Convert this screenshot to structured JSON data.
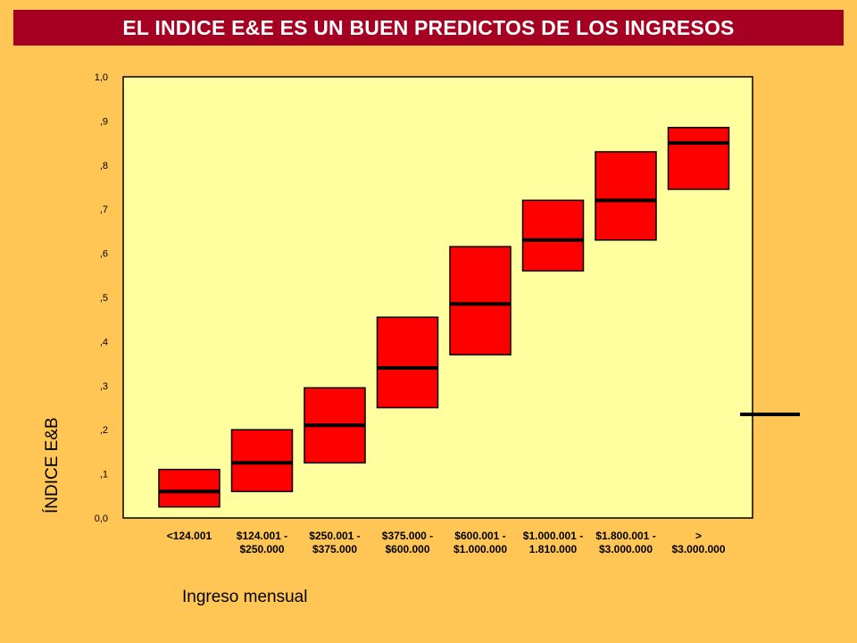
{
  "title": "EL INDICE E&E ES UN BUEN PREDICTOS DE LOS INGRESOS",
  "chart_data": {
    "type": "boxplot",
    "title": "EL INDICE E&E ES UN BUEN PREDICTOS DE LOS INGRESOS",
    "xlabel": "Ingreso mensual",
    "ylabel": "ÍNDICE E&B",
    "ylim": [
      0,
      1
    ],
    "yticks": [
      "0,0",
      ",1",
      ",2",
      ",3",
      ",4",
      ",5",
      ",6",
      ",7",
      ",8",
      ",9",
      "1,0"
    ],
    "categories": [
      [
        "<124.001"
      ],
      [
        "$124.001 -",
        "$250.000"
      ],
      [
        "$250.001 -",
        "$375.000"
      ],
      [
        "$375.000 -",
        "$600.000"
      ],
      [
        "$600.001 -",
        "$1.000.000"
      ],
      [
        "$1.000.001 -",
        "1.810.000"
      ],
      [
        "$1.800.001 -",
        "$3.000.000"
      ],
      [
        ">",
        "$3.000.000"
      ]
    ],
    "boxes": [
      {
        "q1": 0.025,
        "median": 0.06,
        "q3": 0.11
      },
      {
        "q1": 0.06,
        "median": 0.125,
        "q3": 0.2
      },
      {
        "q1": 0.125,
        "median": 0.21,
        "q3": 0.295
      },
      {
        "q1": 0.25,
        "median": 0.34,
        "q3": 0.455
      },
      {
        "q1": 0.37,
        "median": 0.485,
        "q3": 0.615
      },
      {
        "q1": 0.56,
        "median": 0.63,
        "q3": 0.72
      },
      {
        "q1": 0.63,
        "median": 0.72,
        "q3": 0.83
      },
      {
        "q1": 0.745,
        "median": 0.85,
        "q3": 0.885
      }
    ],
    "colors": {
      "background": "#FFC655",
      "plot_area": "#FFFFA0",
      "box_fill": "#FF0000",
      "title_bar": "#A50021",
      "title_text": "#FFFFFF"
    },
    "grid": false
  }
}
